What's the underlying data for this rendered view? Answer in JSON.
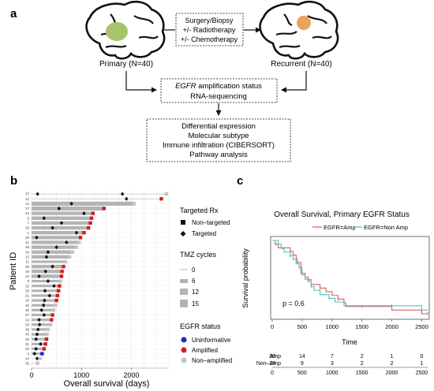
{
  "panel_a": {
    "label": "a",
    "primary_label": "Primary (N=40)",
    "recurrent_label": "Recurrent (N=40)",
    "treatment_lines": [
      "Surgery/Biopsy",
      "+/- Radiotherapy",
      "+/- Chemotherapy"
    ],
    "assay_gene": "EGFR",
    "assay_line1_rest": " amplification status",
    "assay_line2": "RNA-sequencing",
    "analysis_lines": [
      "Differential expression",
      "Molecular subtype",
      "Immune infiltration (CIBERSORT)",
      "Pathway analysis"
    ],
    "colors": {
      "primary_tumor": "#a6c46c",
      "recurrent_tumor": "#e8a25c"
    }
  },
  "panel_b": {
    "label": "b",
    "legend_targeted_title": "Targeted Rx",
    "legend_targeted_items": [
      "Non–targeted",
      "Targeted"
    ],
    "legend_tmz_title": "TMZ cycles",
    "legend_tmz_items": [
      "0",
      "6",
      "12",
      "15"
    ],
    "legend_egfr_title": "EGFR status",
    "legend_egfr_items": [
      "Uninformative",
      "Amplified",
      "Non–amplified"
    ],
    "colors": {
      "uninformative": "#1a2bc0",
      "amplified": "#cc1f1f",
      "non_amplified": "#c4c4c4",
      "bar": "#b4b4b4"
    }
  },
  "panel_c": {
    "label": "c",
    "risk_label_amp": "Amp",
    "risk_label_nonamp": "Non–Amp",
    "risk_amp": [
      "20",
      "14",
      "7",
      "2",
      "1",
      "0"
    ],
    "risk_nonamp": [
      "19",
      "9",
      "3",
      "2",
      "2",
      "1"
    ],
    "colors": {
      "amp": "#e05a5a",
      "nonamp": "#4fbfc4"
    }
  },
  "chart_data": [
    {
      "type": "bar",
      "orientation": "horizontal",
      "xlabel": "Overall survival (days)",
      "ylabel": "Patient ID",
      "xlim": [
        0,
        2750
      ],
      "xticks": [
        0,
        1000,
        2000
      ],
      "grid": true,
      "patients": [
        {
          "id": "37",
          "survival": 2700,
          "tmz": 0,
          "egfr": "non-amplified",
          "targeted_at": 120,
          "marker2": 1820
        },
        {
          "id": "12",
          "survival": 2600,
          "tmz": 0,
          "egfr": "amplified",
          "targeted_at": 1900
        },
        {
          "id": "14",
          "survival": 2050,
          "tmz": 15,
          "egfr": "non-amplified",
          "targeted_at": 800
        },
        {
          "id": "27",
          "survival": 1450,
          "tmz": 15,
          "egfr": "amplified",
          "targeted_at": 550
        },
        {
          "id": "43",
          "survival": 1230,
          "tmz": 12,
          "egfr": "amplified",
          "targeted_at": 1050
        },
        {
          "id": "5",
          "survival": 1200,
          "tmz": 12,
          "egfr": "amplified",
          "targeted_at": 250
        },
        {
          "id": "7",
          "survival": 1180,
          "tmz": 12,
          "egfr": "amplified",
          "targeted_at": 600
        },
        {
          "id": "26",
          "survival": 1140,
          "tmz": 12,
          "egfr": "amplified",
          "targeted_at": 420
        },
        {
          "id": "1",
          "survival": 1050,
          "tmz": 12,
          "egfr": "amplified",
          "targeted_at": 900
        },
        {
          "id": "20",
          "survival": 980,
          "tmz": 12,
          "egfr": "amplified",
          "targeted_at": 100
        },
        {
          "id": "41",
          "survival": 950,
          "tmz": 12,
          "egfr": "non-amplified",
          "targeted_at": 700
        },
        {
          "id": "48",
          "survival": 900,
          "tmz": 12,
          "egfr": "non-amplified",
          "targeted_at": 500
        },
        {
          "id": "34",
          "survival": 820,
          "tmz": 12,
          "egfr": "non-amplified",
          "targeted_at": 330
        },
        {
          "id": "10",
          "survival": 760,
          "tmz": 12,
          "egfr": "non-amplified",
          "targeted_at": 300
        },
        {
          "id": "11",
          "survival": 680,
          "tmz": 6,
          "egfr": "non-amplified"
        },
        {
          "id": "30",
          "survival": 640,
          "tmz": 12,
          "egfr": "amplified",
          "targeted_at": 420
        },
        {
          "id": "19",
          "survival": 610,
          "tmz": 12,
          "egfr": "amplified",
          "targeted_at": 280
        },
        {
          "id": "23",
          "survival": 600,
          "tmz": 12,
          "egfr": "amplified",
          "targeted_at": 150
        },
        {
          "id": "9",
          "survival": 580,
          "tmz": 6,
          "egfr": "non-amplified",
          "targeted_at": 330
        },
        {
          "id": "15",
          "survival": 560,
          "tmz": 6,
          "egfr": "amplified",
          "targeted_at": 450
        },
        {
          "id": "25",
          "survival": 540,
          "tmz": 6,
          "egfr": "amplified",
          "targeted_at": 270
        },
        {
          "id": "21",
          "survival": 520,
          "tmz": 6,
          "egfr": "amplified",
          "targeted_at": 360
        },
        {
          "id": "16",
          "survival": 500,
          "tmz": 6,
          "egfr": "amplified",
          "targeted_at": 260
        },
        {
          "id": "46",
          "survival": 480,
          "tmz": 6,
          "egfr": "non-amplified",
          "targeted_at": 240
        },
        {
          "id": "38",
          "survival": 440,
          "tmz": 6,
          "egfr": "non-amplified",
          "targeted_at": 200
        },
        {
          "id": "47",
          "survival": 420,
          "tmz": 6,
          "egfr": "amplified",
          "targeted_at": 250
        },
        {
          "id": "24",
          "survival": 400,
          "tmz": 6,
          "egfr": "amplified",
          "targeted_at": 150
        },
        {
          "id": "33",
          "survival": 380,
          "tmz": 6,
          "egfr": "non-amplified",
          "targeted_at": 160
        },
        {
          "id": "39",
          "survival": 330,
          "tmz": 6,
          "egfr": "non-amplified",
          "targeted_at": 130
        },
        {
          "id": "45",
          "survival": 310,
          "tmz": 6,
          "egfr": "non-amplified",
          "targeted_at": 110
        },
        {
          "id": "40",
          "survival": 300,
          "tmz": 6,
          "egfr": "amplified",
          "targeted_at": 90
        },
        {
          "id": "31",
          "survival": 280,
          "tmz": 6,
          "egfr": "amplified",
          "targeted_at": 180
        },
        {
          "id": "32",
          "survival": 250,
          "tmz": 6,
          "egfr": "amplified",
          "targeted_at": 90
        },
        {
          "id": "3",
          "survival": 210,
          "tmz": 6,
          "egfr": "uninformative",
          "targeted_at": 60
        },
        {
          "id": "44",
          "survival": 170,
          "tmz": 0,
          "egfr": "non-amplified",
          "targeted_at": 110
        },
        {
          "id": "36",
          "survival": 120,
          "tmz": 0,
          "egfr": "non-amplified"
        }
      ]
    },
    {
      "type": "line",
      "title": "Overall Survival, Primary EGFR Status",
      "xlabel": "Time",
      "ylabel": "Survival probability",
      "xlim": [
        0,
        2600
      ],
      "ylim": [
        0,
        1
      ],
      "xticks": [
        0,
        500,
        1000,
        1500,
        2000,
        2500
      ],
      "annotation": "p = 0.6",
      "legend_position": "top",
      "series": [
        {
          "name": "EGFR=Amp",
          "x": [
            0,
            50,
            100,
            200,
            300,
            350,
            400,
            420,
            480,
            550,
            600,
            650,
            700,
            800,
            900,
            1000,
            1100,
            1200,
            1230,
            1500,
            2000,
            2500,
            2600
          ],
          "y": [
            1.0,
            0.95,
            0.9,
            0.9,
            0.85,
            0.8,
            0.75,
            0.7,
            0.55,
            0.5,
            0.45,
            0.4,
            0.4,
            0.35,
            0.3,
            0.25,
            0.2,
            0.15,
            0.1,
            0.1,
            0.05,
            0.0,
            0.0
          ]
        },
        {
          "name": "EGFR=Non Amp",
          "x": [
            0,
            100,
            150,
            200,
            300,
            350,
            400,
            450,
            500,
            550,
            650,
            700,
            800,
            950,
            1050,
            1200,
            2000,
            2500,
            2600
          ],
          "y": [
            1.0,
            0.95,
            0.89,
            0.84,
            0.79,
            0.74,
            0.68,
            0.63,
            0.53,
            0.47,
            0.37,
            0.32,
            0.26,
            0.21,
            0.16,
            0.11,
            0.11,
            0.05,
            0.05
          ]
        }
      ]
    }
  ]
}
